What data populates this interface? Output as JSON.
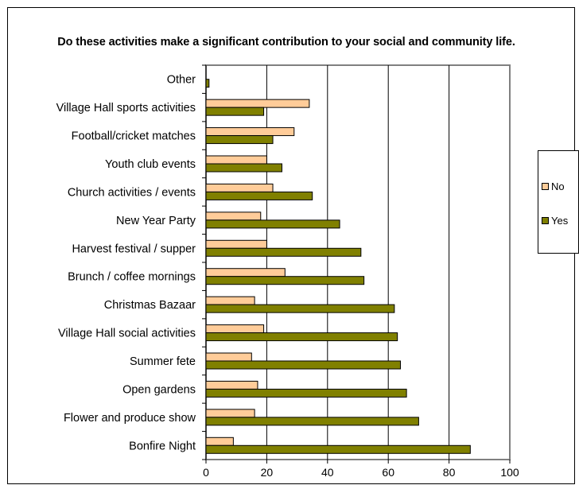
{
  "chart_data": {
    "type": "bar",
    "orientation": "horizontal",
    "title": "Do these activities make a significant contribution to your social and community life.",
    "categories": [
      "Other",
      "Village Hall sports activities",
      "Football/cricket matches",
      "Youth club events",
      "Church activities / events",
      "New Year Party",
      "Harvest festival / supper",
      "Brunch / coffee mornings",
      "Christmas Bazaar",
      "Village Hall social activities",
      "Summer fete",
      "Open gardens",
      "Flower and produce show",
      "Bonfire Night"
    ],
    "series": [
      {
        "name": "No",
        "color": "#FFCC99",
        "values": [
          0,
          34,
          29,
          20,
          22,
          18,
          20,
          26,
          16,
          19,
          15,
          17,
          16,
          9
        ]
      },
      {
        "name": "Yes",
        "color": "#808000",
        "values": [
          1,
          19,
          22,
          25,
          35,
          44,
          51,
          52,
          62,
          63,
          64,
          66,
          70,
          87
        ]
      }
    ],
    "xlim": [
      0,
      100
    ],
    "xticks": [
      "0",
      "20",
      "40",
      "60",
      "80",
      "100"
    ],
    "grid": true,
    "legend_position": "right"
  }
}
